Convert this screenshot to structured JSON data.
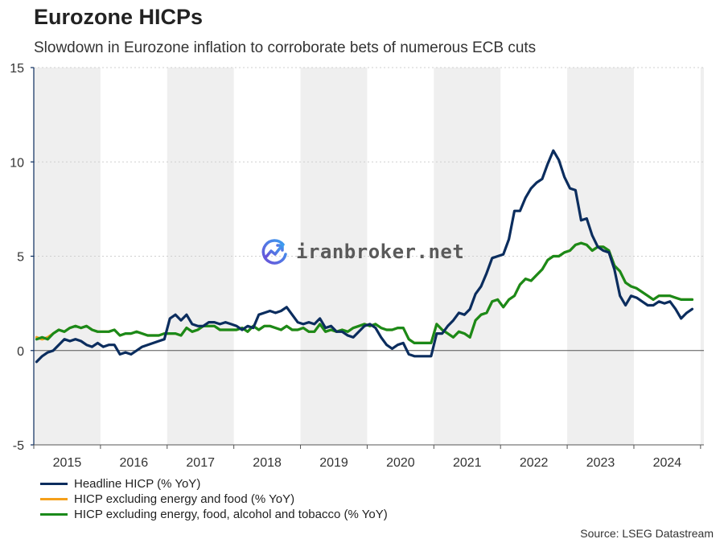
{
  "header": {
    "title": "Eurozone HICPs",
    "subtitle": "Slowdown in Eurozone inflation to corroborate bets of numerous ECB cuts"
  },
  "source": "Source: LSEG Datastream",
  "watermark": {
    "text": "iranbroker.net",
    "icon": "chart-logo-icon"
  },
  "chart_data": {
    "type": "line",
    "title": "Eurozone HICPs",
    "subtitle": "Slowdown in Eurozone inflation to corroborate bets of numerous ECB cuts",
    "xlabel": "",
    "ylabel": "",
    "ylim": [
      -5,
      15
    ],
    "yticks": [
      -5,
      0,
      5,
      10,
      15
    ],
    "xlim": [
      2015.0,
      2025.05
    ],
    "x_tick_labels": [
      "2015",
      "2016",
      "2017",
      "2018",
      "2019",
      "2020",
      "2021",
      "2022",
      "2023",
      "2024"
    ],
    "grid": true,
    "legend_position": "bottom-left",
    "x_start": "2015-01",
    "x_frequency": "monthly",
    "series": [
      {
        "name": "Headline HICP (% YoY)",
        "color": "#0b2d5e",
        "values": [
          -0.6,
          -0.3,
          -0.1,
          0.0,
          0.3,
          0.6,
          0.5,
          0.6,
          0.5,
          0.3,
          0.2,
          0.4,
          0.2,
          0.3,
          0.3,
          -0.2,
          -0.1,
          -0.2,
          0.0,
          0.2,
          0.3,
          0.4,
          0.5,
          0.6,
          1.7,
          1.9,
          1.6,
          1.9,
          1.4,
          1.3,
          1.3,
          1.5,
          1.5,
          1.4,
          1.5,
          1.4,
          1.3,
          1.1,
          1.3,
          1.2,
          1.9,
          2.0,
          2.1,
          2.0,
          2.1,
          2.3,
          1.9,
          1.5,
          1.4,
          1.5,
          1.4,
          1.7,
          1.2,
          1.3,
          1.0,
          1.0,
          0.8,
          0.7,
          1.0,
          1.3,
          1.4,
          1.2,
          0.7,
          0.3,
          0.1,
          0.3,
          0.4,
          -0.2,
          -0.3,
          -0.3,
          -0.3,
          -0.3,
          0.9,
          0.9,
          1.3,
          1.6,
          2.0,
          1.9,
          2.2,
          3.0,
          3.4,
          4.1,
          4.9,
          5.0,
          5.1,
          5.9,
          7.4,
          7.4,
          8.1,
          8.6,
          8.9,
          9.1,
          9.9,
          10.6,
          10.1,
          9.2,
          8.6,
          8.5,
          6.9,
          7.0,
          6.1,
          5.5,
          5.3,
          5.2,
          4.3,
          2.9,
          2.4,
          2.9,
          2.8,
          2.6,
          2.4,
          2.4,
          2.6,
          2.5,
          2.6,
          2.2,
          1.7,
          2.0,
          2.2
        ]
      },
      {
        "name": "HICP excluding energy and food (% YoY)",
        "color": "#f5a01a",
        "values": [
          0.7,
          0.6,
          0.7,
          0.9,
          1.1,
          1.0,
          1.2,
          1.3,
          1.2,
          1.3,
          1.1,
          1.0,
          1.0,
          1.0,
          1.1,
          0.8,
          0.9,
          0.9,
          1.0,
          0.9,
          0.8,
          0.8,
          0.8,
          0.9,
          0.9,
          0.9,
          0.8,
          1.2,
          1.0,
          1.1,
          1.3,
          1.3,
          1.3,
          1.1,
          1.1,
          1.1,
          1.1,
          1.2,
          1.0,
          1.3,
          1.1,
          1.3,
          1.3,
          1.2,
          1.1,
          1.3,
          1.1,
          1.1,
          1.2,
          1.0,
          1.0,
          1.4,
          1.0,
          1.1,
          1.0,
          1.1,
          1.0,
          1.2,
          1.3,
          1.4,
          1.3,
          1.4,
          1.2,
          1.1,
          1.1,
          1.2,
          1.2,
          0.6,
          0.4,
          0.4,
          0.4,
          0.4,
          1.4,
          1.1,
          0.9,
          0.7,
          1.0,
          0.9,
          0.7,
          1.6,
          1.9,
          2.0,
          2.6,
          2.7,
          2.3,
          2.7,
          2.9,
          3.5,
          3.8,
          3.7,
          4.0,
          4.3,
          4.8,
          5.0,
          5.0,
          5.2,
          5.3,
          5.6,
          5.7,
          5.6,
          5.3,
          5.5,
          5.5,
          5.3,
          4.5,
          4.2,
          3.6,
          3.4,
          3.3,
          3.1,
          2.9,
          2.7,
          2.9,
          2.9,
          2.9,
          2.8,
          2.7,
          2.7,
          2.7
        ]
      },
      {
        "name": "HICP excluding energy, food, alcohol and tobacco (% YoY)",
        "color": "#1a8a1a",
        "values": [
          0.6,
          0.7,
          0.6,
          0.9,
          1.1,
          1.0,
          1.2,
          1.3,
          1.2,
          1.3,
          1.1,
          1.0,
          1.0,
          1.0,
          1.1,
          0.8,
          0.9,
          0.9,
          1.0,
          0.9,
          0.8,
          0.8,
          0.8,
          0.9,
          0.9,
          0.9,
          0.8,
          1.2,
          1.0,
          1.1,
          1.3,
          1.3,
          1.3,
          1.1,
          1.1,
          1.1,
          1.1,
          1.2,
          1.0,
          1.3,
          1.1,
          1.3,
          1.3,
          1.2,
          1.1,
          1.3,
          1.1,
          1.1,
          1.2,
          1.0,
          1.0,
          1.4,
          1.0,
          1.1,
          1.0,
          1.1,
          1.0,
          1.2,
          1.3,
          1.4,
          1.3,
          1.4,
          1.2,
          1.1,
          1.1,
          1.2,
          1.2,
          0.6,
          0.4,
          0.4,
          0.4,
          0.4,
          1.4,
          1.1,
          0.9,
          0.7,
          1.0,
          0.9,
          0.7,
          1.6,
          1.9,
          2.0,
          2.6,
          2.7,
          2.3,
          2.7,
          2.9,
          3.5,
          3.8,
          3.7,
          4.0,
          4.3,
          4.8,
          5.0,
          5.0,
          5.2,
          5.3,
          5.6,
          5.7,
          5.6,
          5.3,
          5.5,
          5.5,
          5.3,
          4.5,
          4.2,
          3.6,
          3.4,
          3.3,
          3.1,
          2.9,
          2.7,
          2.9,
          2.9,
          2.9,
          2.8,
          2.7,
          2.7,
          2.7
        ]
      }
    ]
  }
}
